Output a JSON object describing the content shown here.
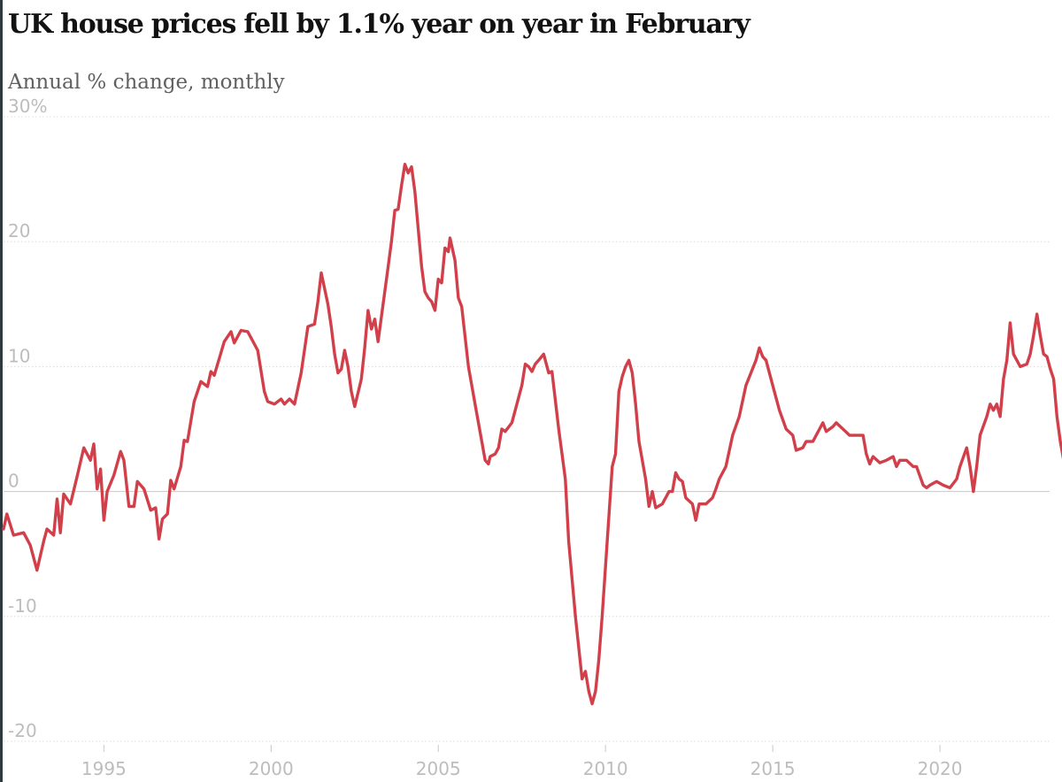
{
  "header": {
    "title": "UK house prices fell by 1.1% year on year in February",
    "subtitle": "Annual % change, monthly"
  },
  "colors": {
    "line": "#d1404a",
    "grid": "#dcdcdc",
    "zero": "#c8c8c8",
    "tick": "#bdbdbd"
  },
  "chart_data": {
    "type": "line",
    "title": "UK house prices fell by 1.1% year on year in February",
    "subtitle": "Annual % change, monthly",
    "xlabel": "",
    "ylabel": "",
    "xlim": [
      1992.0,
      2023.2
    ],
    "ylim": [
      -20,
      30
    ],
    "y_ticks": [
      {
        "value": 30,
        "label": "30%"
      },
      {
        "value": 20,
        "label": "20"
      },
      {
        "value": 10,
        "label": "10"
      },
      {
        "value": 0,
        "label": "0"
      },
      {
        "value": -10,
        "label": "-10"
      },
      {
        "value": -20,
        "label": "-20"
      }
    ],
    "x_ticks": [
      {
        "value": 1995,
        "label": "1995"
      },
      {
        "value": 2000,
        "label": "2000"
      },
      {
        "value": 2005,
        "label": "2005"
      },
      {
        "value": 2010,
        "label": "2010"
      },
      {
        "value": 2015,
        "label": "2015"
      },
      {
        "value": 2020,
        "label": "2020"
      }
    ],
    "grid": true,
    "legend": "none",
    "series": [
      {
        "color": "#d1404a",
        "points": [
          [
            1992.0,
            -3.0
          ],
          [
            1992.1,
            -1.8
          ],
          [
            1992.3,
            -3.5
          ],
          [
            1992.6,
            -3.3
          ],
          [
            1992.8,
            -4.3
          ],
          [
            1993.0,
            -6.3
          ],
          [
            1993.2,
            -4.0
          ],
          [
            1993.3,
            -3.0
          ],
          [
            1993.5,
            -3.5
          ],
          [
            1993.6,
            -0.6
          ],
          [
            1993.7,
            -3.3
          ],
          [
            1993.8,
            -0.2
          ],
          [
            1994.0,
            -1.0
          ],
          [
            1994.2,
            1.2
          ],
          [
            1994.4,
            3.5
          ],
          [
            1994.6,
            2.5
          ],
          [
            1994.7,
            3.8
          ],
          [
            1994.8,
            0.2
          ],
          [
            1994.9,
            1.8
          ],
          [
            1995.0,
            -2.3
          ],
          [
            1995.1,
            0.0
          ],
          [
            1995.3,
            1.3
          ],
          [
            1995.5,
            3.2
          ],
          [
            1995.6,
            2.5
          ],
          [
            1995.75,
            -1.2
          ],
          [
            1995.9,
            -1.2
          ],
          [
            1996.0,
            0.8
          ],
          [
            1996.2,
            0.2
          ],
          [
            1996.4,
            -1.5
          ],
          [
            1996.55,
            -1.3
          ],
          [
            1996.65,
            -3.8
          ],
          [
            1996.75,
            -2.2
          ],
          [
            1996.9,
            -1.8
          ],
          [
            1997.0,
            0.9
          ],
          [
            1997.1,
            0.2
          ],
          [
            1997.3,
            2.0
          ],
          [
            1997.4,
            4.1
          ],
          [
            1997.5,
            4.0
          ],
          [
            1997.7,
            7.2
          ],
          [
            1997.9,
            8.8
          ],
          [
            1998.1,
            8.4
          ],
          [
            1998.2,
            9.6
          ],
          [
            1998.3,
            9.3
          ],
          [
            1998.6,
            12.0
          ],
          [
            1998.8,
            12.8
          ],
          [
            1998.9,
            11.9
          ],
          [
            1999.1,
            12.9
          ],
          [
            1999.3,
            12.8
          ],
          [
            1999.6,
            11.3
          ],
          [
            1999.8,
            8.0
          ],
          [
            1999.9,
            7.2
          ],
          [
            2000.1,
            7.0
          ],
          [
            2000.3,
            7.4
          ],
          [
            2000.4,
            7.0
          ],
          [
            2000.55,
            7.4
          ],
          [
            2000.7,
            7.0
          ],
          [
            2000.9,
            9.5
          ],
          [
            2001.1,
            13.2
          ],
          [
            2001.3,
            13.4
          ],
          [
            2001.4,
            15.2
          ],
          [
            2001.5,
            17.5
          ],
          [
            2001.7,
            15.0
          ],
          [
            2001.8,
            13.2
          ],
          [
            2001.9,
            11.0
          ],
          [
            2002.0,
            9.5
          ],
          [
            2002.1,
            9.8
          ],
          [
            2002.2,
            11.3
          ],
          [
            2002.3,
            10.0
          ],
          [
            2002.4,
            8.0
          ],
          [
            2002.5,
            6.8
          ],
          [
            2002.7,
            9.0
          ],
          [
            2002.8,
            11.5
          ],
          [
            2002.9,
            14.5
          ],
          [
            2003.0,
            13.0
          ],
          [
            2003.1,
            13.8
          ],
          [
            2003.2,
            12.0
          ],
          [
            2003.3,
            14.0
          ],
          [
            2003.5,
            18.0
          ],
          [
            2003.6,
            20.0
          ],
          [
            2003.7,
            22.5
          ],
          [
            2003.8,
            22.6
          ],
          [
            2003.9,
            24.5
          ],
          [
            2004.0,
            26.2
          ],
          [
            2004.1,
            25.5
          ],
          [
            2004.2,
            26.0
          ],
          [
            2004.3,
            24.0
          ],
          [
            2004.4,
            21.0
          ],
          [
            2004.5,
            18.0
          ],
          [
            2004.6,
            16.0
          ],
          [
            2004.7,
            15.5
          ],
          [
            2004.8,
            15.2
          ],
          [
            2004.9,
            14.5
          ],
          [
            2005.0,
            17.0
          ],
          [
            2005.1,
            16.7
          ],
          [
            2005.2,
            19.5
          ],
          [
            2005.3,
            19.2
          ],
          [
            2005.35,
            20.3
          ],
          [
            2005.5,
            18.5
          ],
          [
            2005.6,
            15.5
          ],
          [
            2005.7,
            14.8
          ],
          [
            2005.9,
            10.0
          ],
          [
            2006.1,
            7.0
          ],
          [
            2006.3,
            4.0
          ],
          [
            2006.4,
            2.5
          ],
          [
            2006.5,
            2.2
          ],
          [
            2006.55,
            2.8
          ],
          [
            2006.7,
            3.0
          ],
          [
            2006.8,
            3.5
          ],
          [
            2006.9,
            5.0
          ],
          [
            2007.0,
            4.8
          ],
          [
            2007.2,
            5.5
          ],
          [
            2007.5,
            8.5
          ],
          [
            2007.6,
            10.2
          ],
          [
            2007.7,
            10.0
          ],
          [
            2007.8,
            9.6
          ],
          [
            2007.9,
            10.2
          ],
          [
            2008.0,
            10.5
          ],
          [
            2008.15,
            11.0
          ],
          [
            2008.3,
            9.5
          ],
          [
            2008.4,
            9.6
          ],
          [
            2008.6,
            5.0
          ],
          [
            2008.8,
            1.0
          ],
          [
            2008.9,
            -4.0
          ],
          [
            2009.1,
            -10.0
          ],
          [
            2009.3,
            -15.0
          ],
          [
            2009.4,
            -14.4
          ],
          [
            2009.5,
            -16.0
          ],
          [
            2009.6,
            -17.0
          ],
          [
            2009.7,
            -16.0
          ],
          [
            2009.8,
            -13.5
          ],
          [
            2009.9,
            -10.0
          ],
          [
            2010.0,
            -6.0
          ],
          [
            2010.1,
            -2.0
          ],
          [
            2010.2,
            2.0
          ],
          [
            2010.3,
            3.0
          ],
          [
            2010.4,
            8.0
          ],
          [
            2010.5,
            9.2
          ],
          [
            2010.6,
            10.0
          ],
          [
            2010.7,
            10.5
          ],
          [
            2010.8,
            9.5
          ],
          [
            2010.9,
            7.0
          ],
          [
            2011.0,
            4.0
          ],
          [
            2011.2,
            1.0
          ],
          [
            2011.3,
            -1.2
          ],
          [
            2011.4,
            0.0
          ],
          [
            2011.5,
            -1.3
          ],
          [
            2011.7,
            -1.0
          ],
          [
            2011.9,
            0.0
          ],
          [
            2012.0,
            0.0
          ],
          [
            2012.1,
            1.5
          ],
          [
            2012.2,
            1.0
          ],
          [
            2012.3,
            0.8
          ],
          [
            2012.4,
            -0.5
          ],
          [
            2012.6,
            -1.0
          ],
          [
            2012.7,
            -2.3
          ],
          [
            2012.8,
            -1.0
          ],
          [
            2013.0,
            -1.0
          ],
          [
            2013.2,
            -0.5
          ],
          [
            2013.3,
            0.2
          ],
          [
            2013.4,
            1.0
          ],
          [
            2013.6,
            2.0
          ],
          [
            2013.8,
            4.5
          ],
          [
            2014.0,
            6.0
          ],
          [
            2014.2,
            8.5
          ],
          [
            2014.5,
            10.5
          ],
          [
            2014.6,
            11.5
          ],
          [
            2014.7,
            10.8
          ],
          [
            2014.8,
            10.5
          ],
          [
            2015.0,
            8.5
          ],
          [
            2015.2,
            6.5
          ],
          [
            2015.4,
            5.0
          ],
          [
            2015.6,
            4.5
          ],
          [
            2015.7,
            3.3
          ],
          [
            2015.9,
            3.5
          ],
          [
            2016.0,
            4.0
          ],
          [
            2016.2,
            4.0
          ],
          [
            2016.4,
            5.0
          ],
          [
            2016.5,
            5.5
          ],
          [
            2016.6,
            4.8
          ],
          [
            2016.8,
            5.2
          ],
          [
            2016.9,
            5.5
          ],
          [
            2017.1,
            5.0
          ],
          [
            2017.3,
            4.5
          ],
          [
            2017.7,
            4.5
          ],
          [
            2017.8,
            3.0
          ],
          [
            2017.9,
            2.2
          ],
          [
            2018.0,
            2.8
          ],
          [
            2018.2,
            2.3
          ],
          [
            2018.4,
            2.5
          ],
          [
            2018.6,
            2.8
          ],
          [
            2018.7,
            2.0
          ],
          [
            2018.8,
            2.5
          ],
          [
            2019.0,
            2.5
          ],
          [
            2019.2,
            2.0
          ],
          [
            2019.3,
            2.0
          ],
          [
            2019.5,
            0.5
          ],
          [
            2019.6,
            0.3
          ],
          [
            2019.7,
            0.5
          ],
          [
            2019.9,
            0.8
          ],
          [
            2020.1,
            0.5
          ],
          [
            2020.3,
            0.3
          ],
          [
            2020.5,
            1.0
          ],
          [
            2020.6,
            2.0
          ],
          [
            2020.8,
            3.5
          ],
          [
            2020.9,
            2.0
          ],
          [
            2021.0,
            0.0
          ],
          [
            2021.1,
            2.0
          ],
          [
            2021.2,
            4.5
          ],
          [
            2021.4,
            6.0
          ],
          [
            2021.5,
            7.0
          ],
          [
            2021.6,
            6.5
          ],
          [
            2021.7,
            7.0
          ],
          [
            2021.8,
            6.0
          ],
          [
            2021.9,
            9.0
          ],
          [
            2022.0,
            10.5
          ],
          [
            2022.1,
            13.5
          ],
          [
            2022.2,
            11.0
          ],
          [
            2022.3,
            10.5
          ],
          [
            2022.4,
            10.0
          ],
          [
            2022.6,
            10.2
          ],
          [
            2022.7,
            11.0
          ],
          [
            2022.8,
            12.5
          ],
          [
            2022.9,
            14.2
          ],
          [
            2023.0,
            12.5
          ],
          [
            2023.1,
            11.0
          ],
          [
            2023.2,
            10.8
          ],
          [
            2023.3,
            9.8
          ],
          [
            2023.4,
            9.0
          ],
          [
            2023.5,
            6.0
          ],
          [
            2023.6,
            4.0
          ],
          [
            2023.7,
            2.5
          ],
          [
            2023.8,
            0.5
          ],
          [
            2023.9,
            -1.1
          ]
        ]
      }
    ]
  }
}
